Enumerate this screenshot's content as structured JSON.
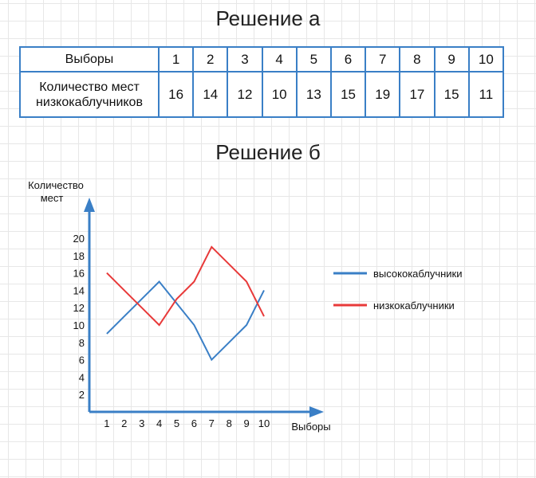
{
  "title_a": "Решение а",
  "title_b": "Решение б",
  "table": {
    "row1_header": "Выборы",
    "row2_header_line1": "Количество мест",
    "row2_header_line2": "низкокаблучников",
    "elections": [
      "1",
      "2",
      "3",
      "4",
      "5",
      "6",
      "7",
      "8",
      "9",
      "10"
    ],
    "seats": [
      "16",
      "14",
      "12",
      "10",
      "13",
      "15",
      "19",
      "17",
      "15",
      "11"
    ]
  },
  "colors": {
    "table_border": "#3a7fc6",
    "series_high": "#3a7fc6",
    "series_low": "#e83a3a",
    "axis": "#3a7fc6"
  },
  "chart_data": {
    "type": "line",
    "ylabel_line1": "Количество",
    "ylabel_line2": "мест",
    "xlabel": "Выборы",
    "x": [
      1,
      2,
      3,
      4,
      5,
      6,
      7,
      8,
      9,
      10
    ],
    "x_ticks": [
      "1",
      "2",
      "3",
      "4",
      "5",
      "6",
      "7",
      "8",
      "9",
      "10"
    ],
    "y_ticks": [
      "2",
      "4",
      "6",
      "8",
      "10",
      "12",
      "14",
      "16",
      "18",
      "20"
    ],
    "y_tick_values": [
      2,
      4,
      6,
      8,
      10,
      12,
      14,
      16,
      18,
      20
    ],
    "xlim": [
      0,
      12
    ],
    "ylim": [
      0,
      22
    ],
    "grid": true,
    "legend_position": "right",
    "series": [
      {
        "name": "высококаблучники",
        "color": "#3a7fc6",
        "values": [
          9,
          11,
          13,
          15,
          12.5,
          10,
          6,
          8,
          10,
          14
        ]
      },
      {
        "name": "низкокаблучники",
        "color": "#e83a3a",
        "values": [
          16,
          14,
          12,
          10,
          13,
          15,
          19,
          17,
          15,
          11
        ]
      }
    ]
  }
}
